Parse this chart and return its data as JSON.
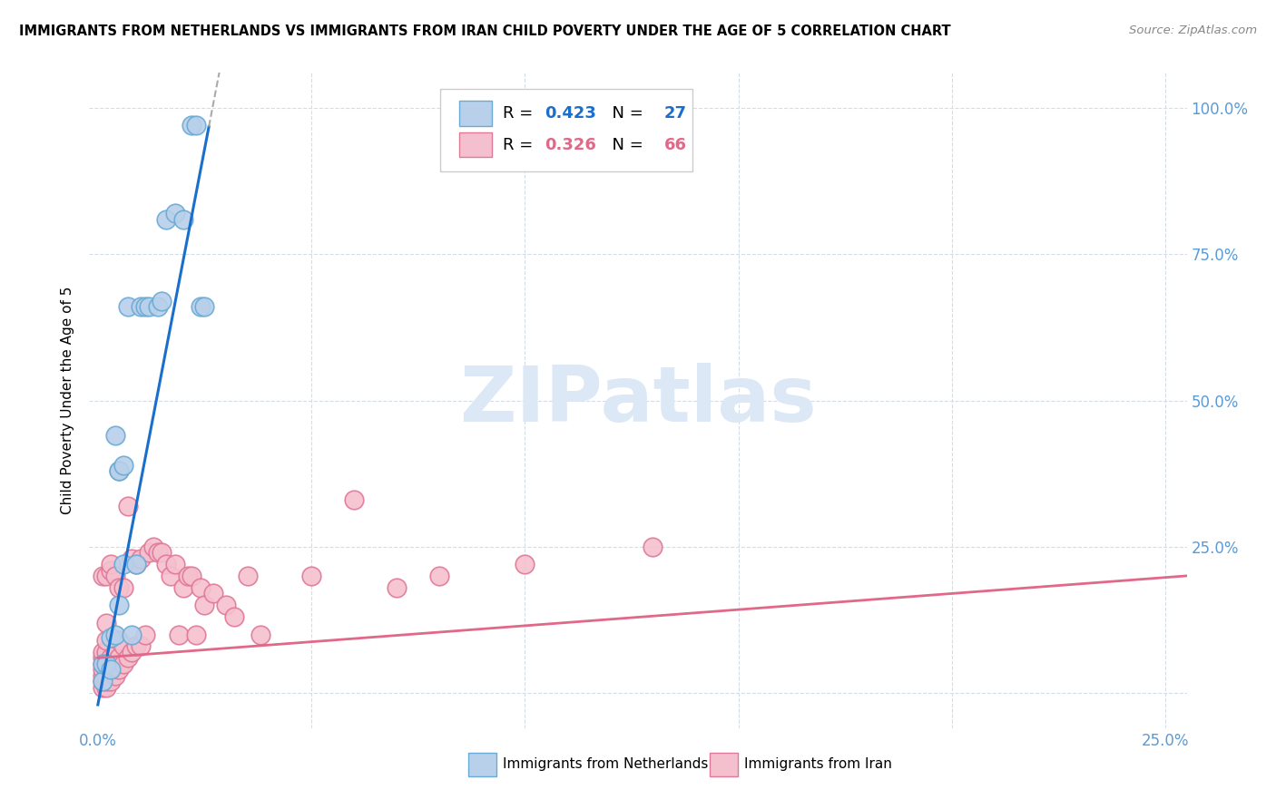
{
  "title": "IMMIGRANTS FROM NETHERLANDS VS IMMIGRANTS FROM IRAN CHILD POVERTY UNDER THE AGE OF 5 CORRELATION CHART",
  "source": "Source: ZipAtlas.com",
  "ylabel": "Child Poverty Under the Age of 5",
  "x_tick_labels": [
    "0.0%",
    "",
    "",
    "",
    "",
    "25.0%"
  ],
  "y_tick_labels_right": [
    "",
    "25.0%",
    "50.0%",
    "75.0%",
    "100.0%"
  ],
  "netherlands_color": "#b8d0ea",
  "netherlands_edge_color": "#6aaad4",
  "iran_color": "#f5c0ce",
  "iran_edge_color": "#e07898",
  "regression_nl_color": "#1a6fcc",
  "regression_iran_color": "#e06888",
  "R_nl": 0.423,
  "N_nl": 27,
  "R_iran": 0.326,
  "N_iran": 66,
  "watermark_text": "ZIPatlas",
  "watermark_color": "#dce8f5",
  "legend_label_nl": "Immigrants from Netherlands",
  "legend_label_iran": "Immigrants from Iran",
  "nl_x": [
    0.001,
    0.001,
    0.002,
    0.003,
    0.003,
    0.004,
    0.004,
    0.005,
    0.005,
    0.005,
    0.006,
    0.006,
    0.007,
    0.008,
    0.009,
    0.01,
    0.011,
    0.012,
    0.014,
    0.015,
    0.016,
    0.018,
    0.02,
    0.022,
    0.023,
    0.024,
    0.025
  ],
  "nl_y": [
    0.02,
    0.05,
    0.05,
    0.04,
    0.095,
    0.1,
    0.44,
    0.15,
    0.38,
    0.38,
    0.39,
    0.22,
    0.66,
    0.1,
    0.22,
    0.66,
    0.66,
    0.66,
    0.66,
    0.67,
    0.81,
    0.82,
    0.81,
    0.97,
    0.97,
    0.66,
    0.66
  ],
  "iran_x": [
    0.001,
    0.001,
    0.001,
    0.001,
    0.001,
    0.001,
    0.001,
    0.001,
    0.002,
    0.002,
    0.002,
    0.002,
    0.002,
    0.002,
    0.002,
    0.002,
    0.003,
    0.003,
    0.003,
    0.003,
    0.003,
    0.004,
    0.004,
    0.004,
    0.004,
    0.005,
    0.005,
    0.005,
    0.005,
    0.006,
    0.006,
    0.006,
    0.007,
    0.007,
    0.008,
    0.008,
    0.009,
    0.009,
    0.01,
    0.01,
    0.011,
    0.012,
    0.013,
    0.014,
    0.015,
    0.016,
    0.017,
    0.018,
    0.019,
    0.02,
    0.021,
    0.022,
    0.023,
    0.024,
    0.025,
    0.027,
    0.03,
    0.032,
    0.035,
    0.038,
    0.05,
    0.06,
    0.07,
    0.08,
    0.1,
    0.13
  ],
  "iran_y": [
    0.01,
    0.02,
    0.03,
    0.04,
    0.05,
    0.06,
    0.07,
    0.2,
    0.01,
    0.02,
    0.03,
    0.05,
    0.07,
    0.09,
    0.12,
    0.2,
    0.02,
    0.04,
    0.06,
    0.21,
    0.22,
    0.03,
    0.05,
    0.07,
    0.2,
    0.04,
    0.06,
    0.09,
    0.18,
    0.05,
    0.08,
    0.18,
    0.06,
    0.32,
    0.07,
    0.23,
    0.08,
    0.22,
    0.08,
    0.23,
    0.1,
    0.24,
    0.25,
    0.24,
    0.24,
    0.22,
    0.2,
    0.22,
    0.1,
    0.18,
    0.2,
    0.2,
    0.1,
    0.18,
    0.15,
    0.17,
    0.15,
    0.13,
    0.2,
    0.1,
    0.2,
    0.33,
    0.18,
    0.2,
    0.22,
    0.25
  ],
  "nl_line_slope": 38.0,
  "nl_line_intercept": -0.02,
  "iran_line_slope": 0.55,
  "iran_line_intercept": 0.06,
  "xlim": [
    -0.002,
    0.255
  ],
  "ylim": [
    -0.06,
    1.06
  ],
  "xticks": [
    0.0,
    0.05,
    0.1,
    0.15,
    0.2,
    0.25
  ],
  "yticks": [
    0.0,
    0.25,
    0.5,
    0.75,
    1.0
  ]
}
